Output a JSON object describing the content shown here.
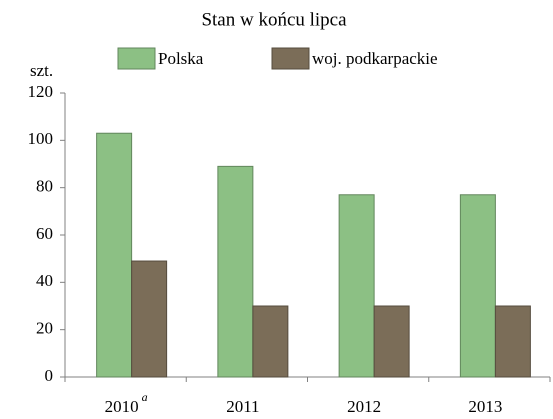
{
  "chart_data": {
    "type": "bar",
    "title": "Stan w końcu lipca",
    "y_axis_label": "szt.",
    "categories": [
      "2010",
      "2011",
      "2012",
      "2013"
    ],
    "annotations": [
      {
        "text": "a",
        "category": 0
      }
    ],
    "series": [
      {
        "name": "Polska",
        "color": "#8cc084",
        "values": [
          103,
          89,
          77,
          77
        ]
      },
      {
        "name": "woj. podkarpackie",
        "color": "#7b6d58",
        "values": [
          49,
          30,
          30,
          30
        ]
      }
    ],
    "ylim": [
      0,
      120
    ],
    "yticks": [
      0,
      20,
      40,
      60,
      80,
      100,
      120
    ],
    "grid": false,
    "legend": "top"
  }
}
